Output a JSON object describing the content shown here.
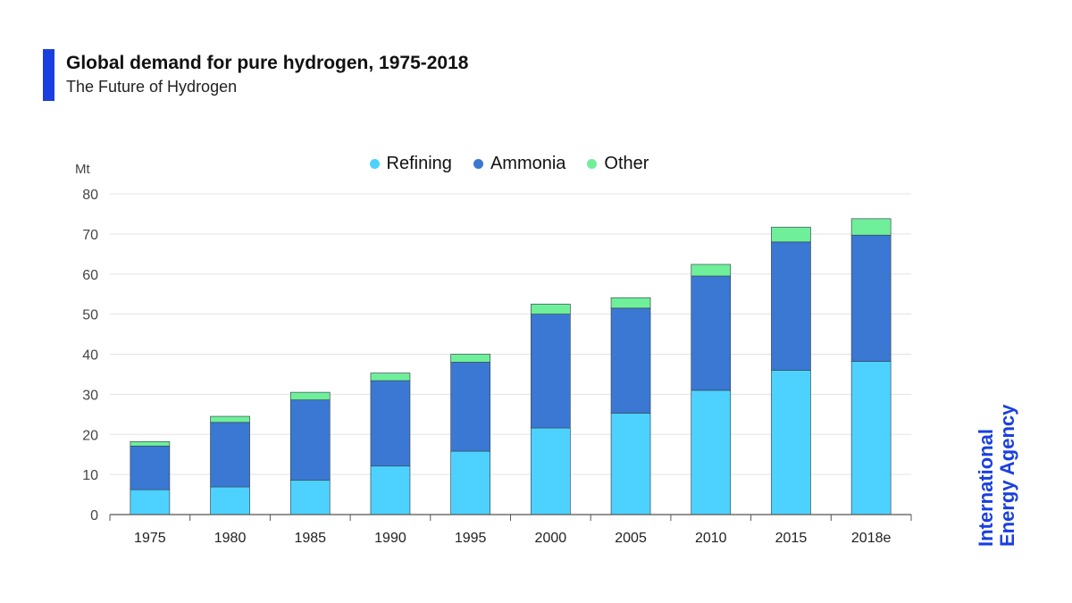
{
  "header": {
    "title": "Global demand for pure hydrogen, 1975-2018",
    "subtitle": "The Future of Hydrogen"
  },
  "branding": {
    "line1": "International",
    "line2": "Energy Agency",
    "color": "#1a3fe0"
  },
  "chart_data": {
    "type": "bar",
    "stacked": true,
    "categories": [
      "1975",
      "1980",
      "1985",
      "1990",
      "1995",
      "2000",
      "2005",
      "2010",
      "2015",
      "2018e"
    ],
    "series": [
      {
        "name": "Refining",
        "color": "#4dd2ff",
        "values": [
          6.2,
          6.9,
          8.6,
          12.1,
          15.8,
          21.6,
          25.3,
          31.0,
          36.0,
          38.2
        ]
      },
      {
        "name": "Ammonia",
        "color": "#3a78d4",
        "values": [
          10.9,
          16.1,
          20.0,
          21.3,
          22.2,
          28.4,
          26.2,
          28.5,
          32.0,
          31.5
        ]
      },
      {
        "name": "Other",
        "color": "#6fef9a",
        "values": [
          1.1,
          1.5,
          1.9,
          1.9,
          2.0,
          2.5,
          2.6,
          2.9,
          3.7,
          4.1
        ]
      }
    ],
    "ylabel": "Mt",
    "ylim": [
      0,
      80
    ],
    "yticks": [
      0,
      10,
      20,
      30,
      40,
      50,
      60,
      70,
      80
    ],
    "grid": true,
    "legend_position": "top-center"
  }
}
